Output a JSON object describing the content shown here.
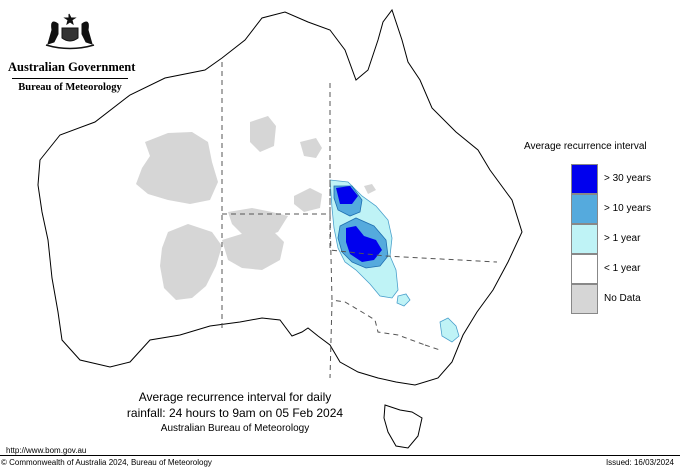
{
  "header": {
    "government": "Australian Government",
    "agency": "Bureau of Meteorology"
  },
  "legend": {
    "title": "Average recurrence interval",
    "items": [
      {
        "label": "> 30 years",
        "color": "#0000ee"
      },
      {
        "label": "> 10 years",
        "color": "#55aadd"
      },
      {
        "label": "> 1 year",
        "color": "#bff3f6"
      },
      {
        "label": "< 1 year",
        "color": "#ffffff"
      },
      {
        "label": "No Data",
        "color": "#d6d6d6"
      }
    ]
  },
  "caption": {
    "line1": "Average recurrence interval for daily",
    "line2": "rainfall: 24 hours to 9am on 05 Feb 2024",
    "line3": "Australian Bureau of Meteorology"
  },
  "footer": {
    "url": "http://www.bom.gov.au",
    "copyright": "© Commonwealth of Australia 2024, Bureau of Meteorology",
    "issued": "Issued: 16/03/2024"
  }
}
